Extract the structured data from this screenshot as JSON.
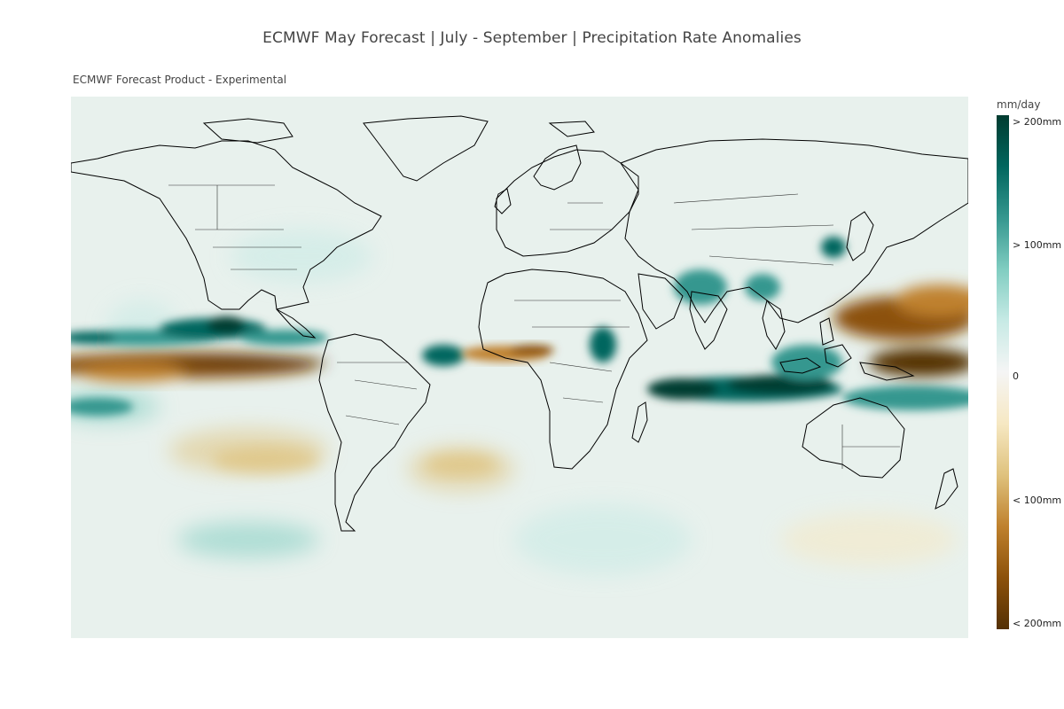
{
  "title": "ECMWF May Forecast | July - September | Precipitation Rate Anomalies",
  "subtitle": "ECMWF Forecast Product - Experimental",
  "colorbar": {
    "title": "mm/day",
    "ticks": [
      "> 200mm",
      "> 100mm",
      "0",
      "< 100mm",
      "< 200mm"
    ],
    "colors": [
      "#003c30",
      "#01665e",
      "#35978f",
      "#80cdc1",
      "#c7eae5",
      "#f5f5f5",
      "#f6e8c3",
      "#dfc27d",
      "#bf812d",
      "#8c510a",
      "#543005"
    ]
  },
  "map": {
    "projection": "equirectangular",
    "background_color": "#eaf1ee",
    "coastline_color": "#000000"
  }
}
